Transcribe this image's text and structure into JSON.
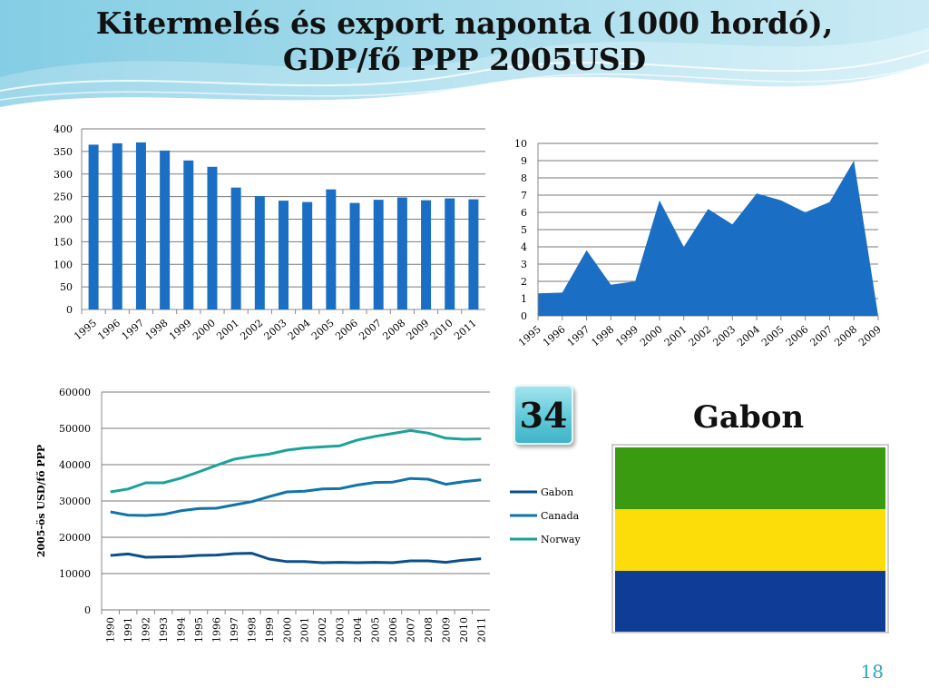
{
  "title": {
    "line1": "Kitermelés és export naponta (1000 hordó),",
    "line2": "GDP/fő PPP 2005USD"
  },
  "badge": "34",
  "country": "Gabon",
  "page_number": "18",
  "colors": {
    "bar": "#1a6fc4",
    "area": "#1a6fc4",
    "gabon": "#0b4f8a",
    "canada": "#0f74a8",
    "norway": "#1aa39a",
    "flag_green": "#3a9a10",
    "flag_yellow": "#fcdd09",
    "flag_blue": "#0f3c96",
    "accent": "#2aa6c3"
  },
  "chart_data": [
    {
      "type": "bar",
      "categories": [
        "1995",
        "1996",
        "1997",
        "1998",
        "1999",
        "2000",
        "2001",
        "2002",
        "2003",
        "2004",
        "2005",
        "2006",
        "2007",
        "2008",
        "2009",
        "2010",
        "2011"
      ],
      "values": [
        365,
        368,
        370,
        352,
        330,
        316,
        270,
        251,
        241,
        238,
        266,
        236,
        243,
        248,
        242,
        246,
        244
      ],
      "ylim": [
        0,
        400
      ],
      "yticks": [
        0,
        50,
        100,
        150,
        200,
        250,
        300,
        350,
        400
      ],
      "grid": true
    },
    {
      "type": "area",
      "categories": [
        "1995",
        "1996",
        "1997",
        "1998",
        "1999",
        "2000",
        "2001",
        "2002",
        "2003",
        "2004",
        "2005",
        "2006",
        "2007",
        "2008",
        "2009"
      ],
      "values": [
        1.3,
        1.35,
        3.8,
        1.8,
        2.0,
        6.7,
        4.0,
        6.2,
        5.3,
        7.1,
        6.7,
        6.0,
        6.6,
        9.0,
        0
      ],
      "ylim": [
        0,
        10
      ],
      "yticks": [
        0,
        1,
        2,
        3,
        4,
        5,
        6,
        7,
        8,
        9,
        10
      ],
      "grid": true
    },
    {
      "type": "line",
      "x": [
        "1990",
        "1991",
        "1992",
        "1993",
        "1994",
        "1995",
        "1996",
        "1997",
        "1998",
        "1999",
        "2000",
        "2001",
        "2002",
        "2003",
        "2004",
        "2005",
        "2006",
        "2007",
        "2008",
        "2009",
        "2010",
        "2011"
      ],
      "ylabel": "2005-ös USD/fő PPP",
      "ylim": [
        0,
        60000
      ],
      "yticks": [
        0,
        10000,
        20000,
        30000,
        40000,
        50000,
        60000
      ],
      "grid": true,
      "legend_position": "right",
      "series": [
        {
          "name": "Gabon",
          "values": [
            15000,
            15400,
            14500,
            14600,
            14700,
            15000,
            15100,
            15500,
            15600,
            14000,
            13300,
            13300,
            13000,
            13100,
            13000,
            13100,
            13000,
            13500,
            13500,
            13100,
            13700,
            14100
          ]
        },
        {
          "name": "Canada",
          "values": [
            27000,
            26100,
            26000,
            26300,
            27300,
            27900,
            28000,
            28900,
            29800,
            31200,
            32500,
            32700,
            33300,
            33400,
            34400,
            35100,
            35200,
            36200,
            36000,
            34600,
            35300,
            35800
          ]
        },
        {
          "name": "Norway",
          "values": [
            32500,
            33300,
            35000,
            35000,
            36300,
            38000,
            39800,
            41500,
            42300,
            42900,
            44000,
            44600,
            44900,
            45200,
            46800,
            47800,
            48600,
            49400,
            48700,
            47300,
            47000,
            47100
          ]
        }
      ]
    }
  ]
}
